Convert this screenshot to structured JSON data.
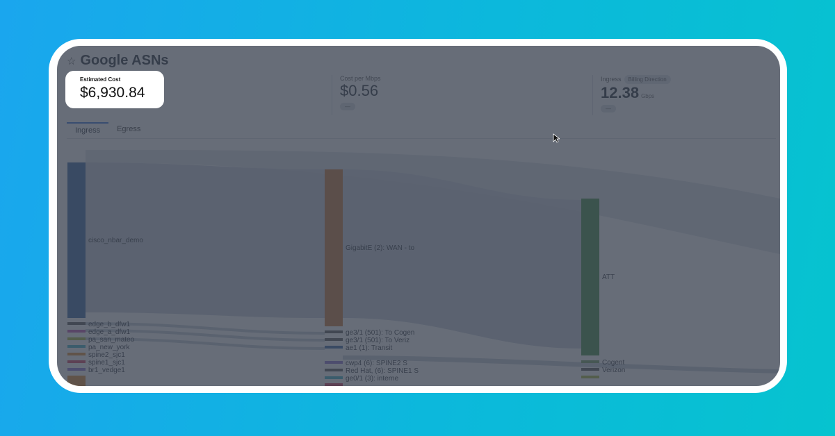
{
  "page": {
    "title": "Google ASNs"
  },
  "metrics": {
    "estimated_cost": {
      "label": "Estimated Cost",
      "value": "$6,930.84"
    },
    "cost_per_mbps": {
      "label": "Cost per Mbps",
      "value": "$0.56",
      "pill": "—"
    },
    "ingress": {
      "label": "Ingress",
      "chip": "Billing Direction",
      "value": "12.38",
      "unit": "Gbps",
      "pill": "—"
    }
  },
  "tabs": [
    {
      "label": "Ingress",
      "active": true
    },
    {
      "label": "Egress",
      "active": false
    }
  ],
  "sankey": {
    "col1": [
      {
        "label": "cisco_nbar_demo",
        "color": "#2d5f9e"
      },
      {
        "label": "edge_b_dfw1",
        "color": "#555"
      },
      {
        "label": "edge_a_dfw1",
        "color": "#c04fb0"
      },
      {
        "label": "pa_san_mateo",
        "color": "#a6b83a"
      },
      {
        "label": "pa_new_york",
        "color": "#3ab0c9"
      },
      {
        "label": "spine2_sjc1",
        "color": "#e08a2c"
      },
      {
        "label": "spine1_sjc1",
        "color": "#d03a5a"
      },
      {
        "label": "br1_vedge1",
        "color": "#8a6fd0"
      }
    ],
    "col2": [
      {
        "label": "GigabitE (2): WAN - to",
        "color": "#c8742e"
      },
      {
        "label": "ge3/1 (501): To Cogen",
        "color": "#555"
      },
      {
        "label": "ge3/1 (501): To Veriz",
        "color": "#555"
      },
      {
        "label": "ae1 (1): Transit",
        "color": "#2d5f9e"
      },
      {
        "label": "cwp4 (6): SPINE2 S",
        "color": "#8a6fd0"
      },
      {
        "label": "Red Hat, (6): SPINE1 S",
        "color": "#555"
      },
      {
        "label": "ge0/1 (3): interne",
        "color": "#3ab0c9"
      }
    ],
    "col3": [
      {
        "label": "ATT",
        "color": "#3a8a3e"
      },
      {
        "label": "Cogent",
        "color": "#6a9a5a"
      },
      {
        "label": "Verizon",
        "color": "#555"
      }
    ]
  }
}
